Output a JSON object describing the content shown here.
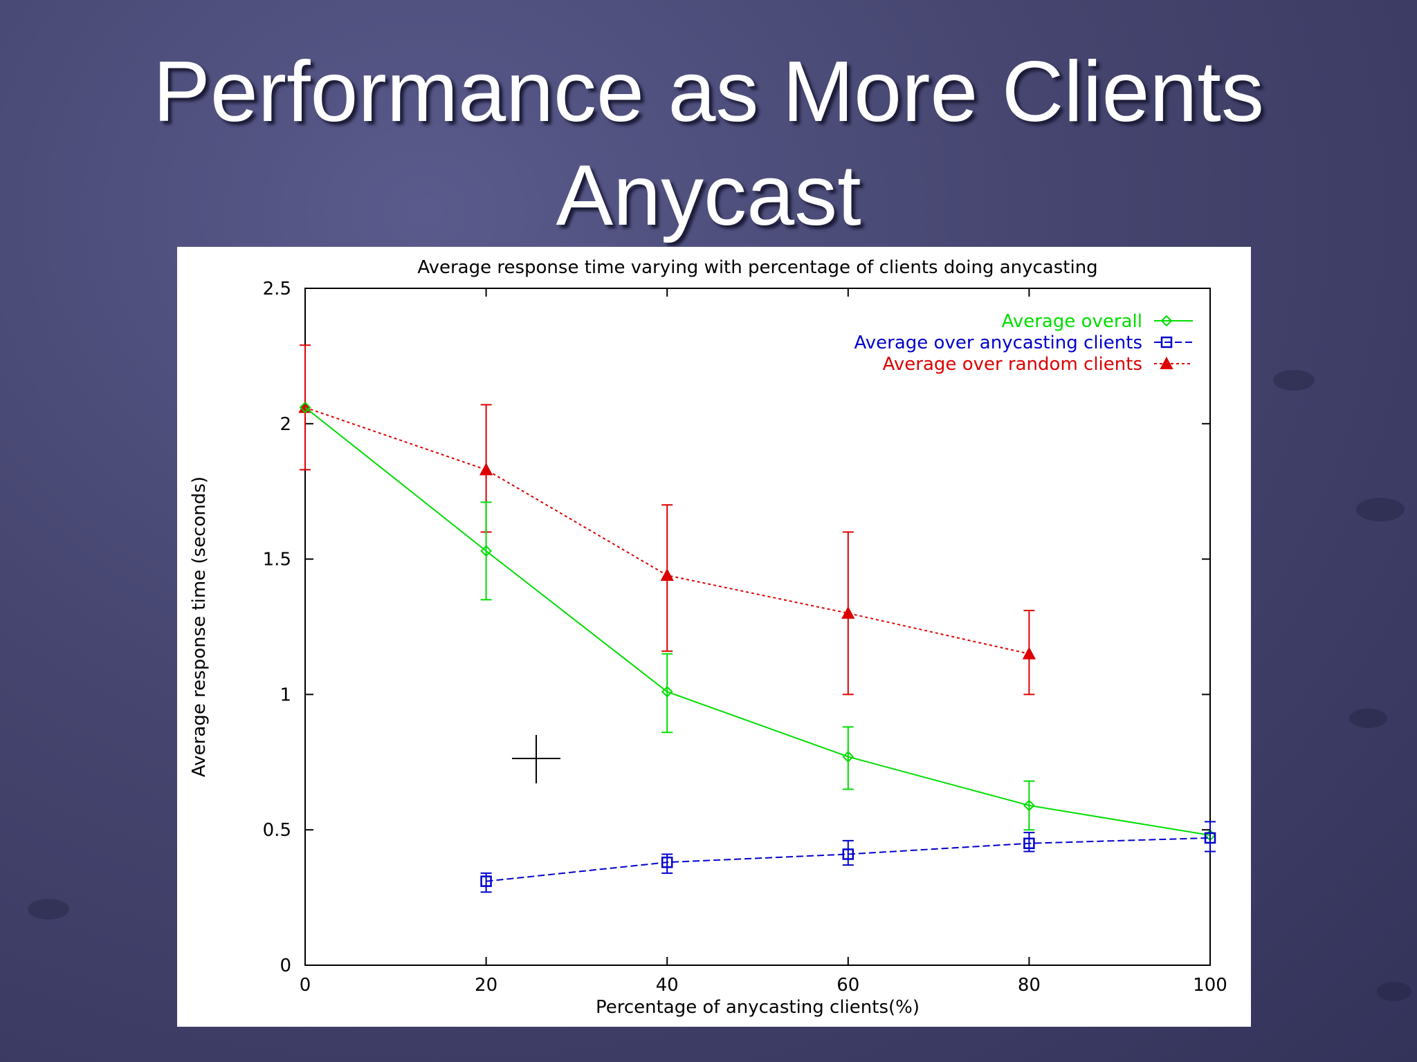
{
  "slide": {
    "title_line1": "Performance as More Clients",
    "title_line2": "Anycast"
  },
  "chart_data": {
    "type": "line",
    "title": "Average response time varying with percentage of clients doing anycasting",
    "xlabel": "Percentage of anycasting clients(%)",
    "ylabel": "Average response time (seconds)",
    "xlim": [
      0,
      100
    ],
    "ylim": [
      0,
      2.5
    ],
    "xticks": [
      0,
      20,
      40,
      60,
      80,
      100
    ],
    "yticks": [
      0,
      0.5,
      1,
      1.5,
      2,
      2.5
    ],
    "ytick_labels": [
      "0",
      "0.5",
      "1",
      "1.5",
      "2",
      "2.5"
    ],
    "legend_position": "top-right",
    "grid": false,
    "series": [
      {
        "name": "Average overall",
        "color": "#00dd00",
        "marker": "diamond",
        "dash": "solid",
        "x": [
          0,
          20,
          40,
          60,
          80,
          100
        ],
        "y": [
          2.06,
          1.53,
          1.01,
          0.77,
          0.59,
          0.48
        ],
        "err_low": [
          2.06,
          1.35,
          0.86,
          0.65,
          0.5,
          0.48
        ],
        "err_high": [
          2.06,
          1.71,
          1.15,
          0.88,
          0.68,
          0.48
        ]
      },
      {
        "name": "Average over anycasting clients",
        "color": "#0000cc",
        "marker": "square",
        "dash": "dashed",
        "x": [
          20,
          40,
          60,
          80,
          100
        ],
        "y": [
          0.31,
          0.38,
          0.41,
          0.45,
          0.47
        ],
        "err_low": [
          0.27,
          0.34,
          0.37,
          0.42,
          0.42
        ],
        "err_high": [
          0.34,
          0.41,
          0.46,
          0.49,
          0.53
        ]
      },
      {
        "name": "Average over random clients",
        "color": "#dd0000",
        "marker": "triangle",
        "dash": "dotted",
        "x": [
          0,
          20,
          40,
          60,
          80
        ],
        "y": [
          2.06,
          1.83,
          1.44,
          1.3,
          1.15
        ],
        "err_low": [
          1.83,
          1.6,
          1.16,
          1.0,
          1.0
        ],
        "err_high": [
          2.29,
          2.07,
          1.7,
          1.6,
          1.31
        ]
      }
    ]
  }
}
